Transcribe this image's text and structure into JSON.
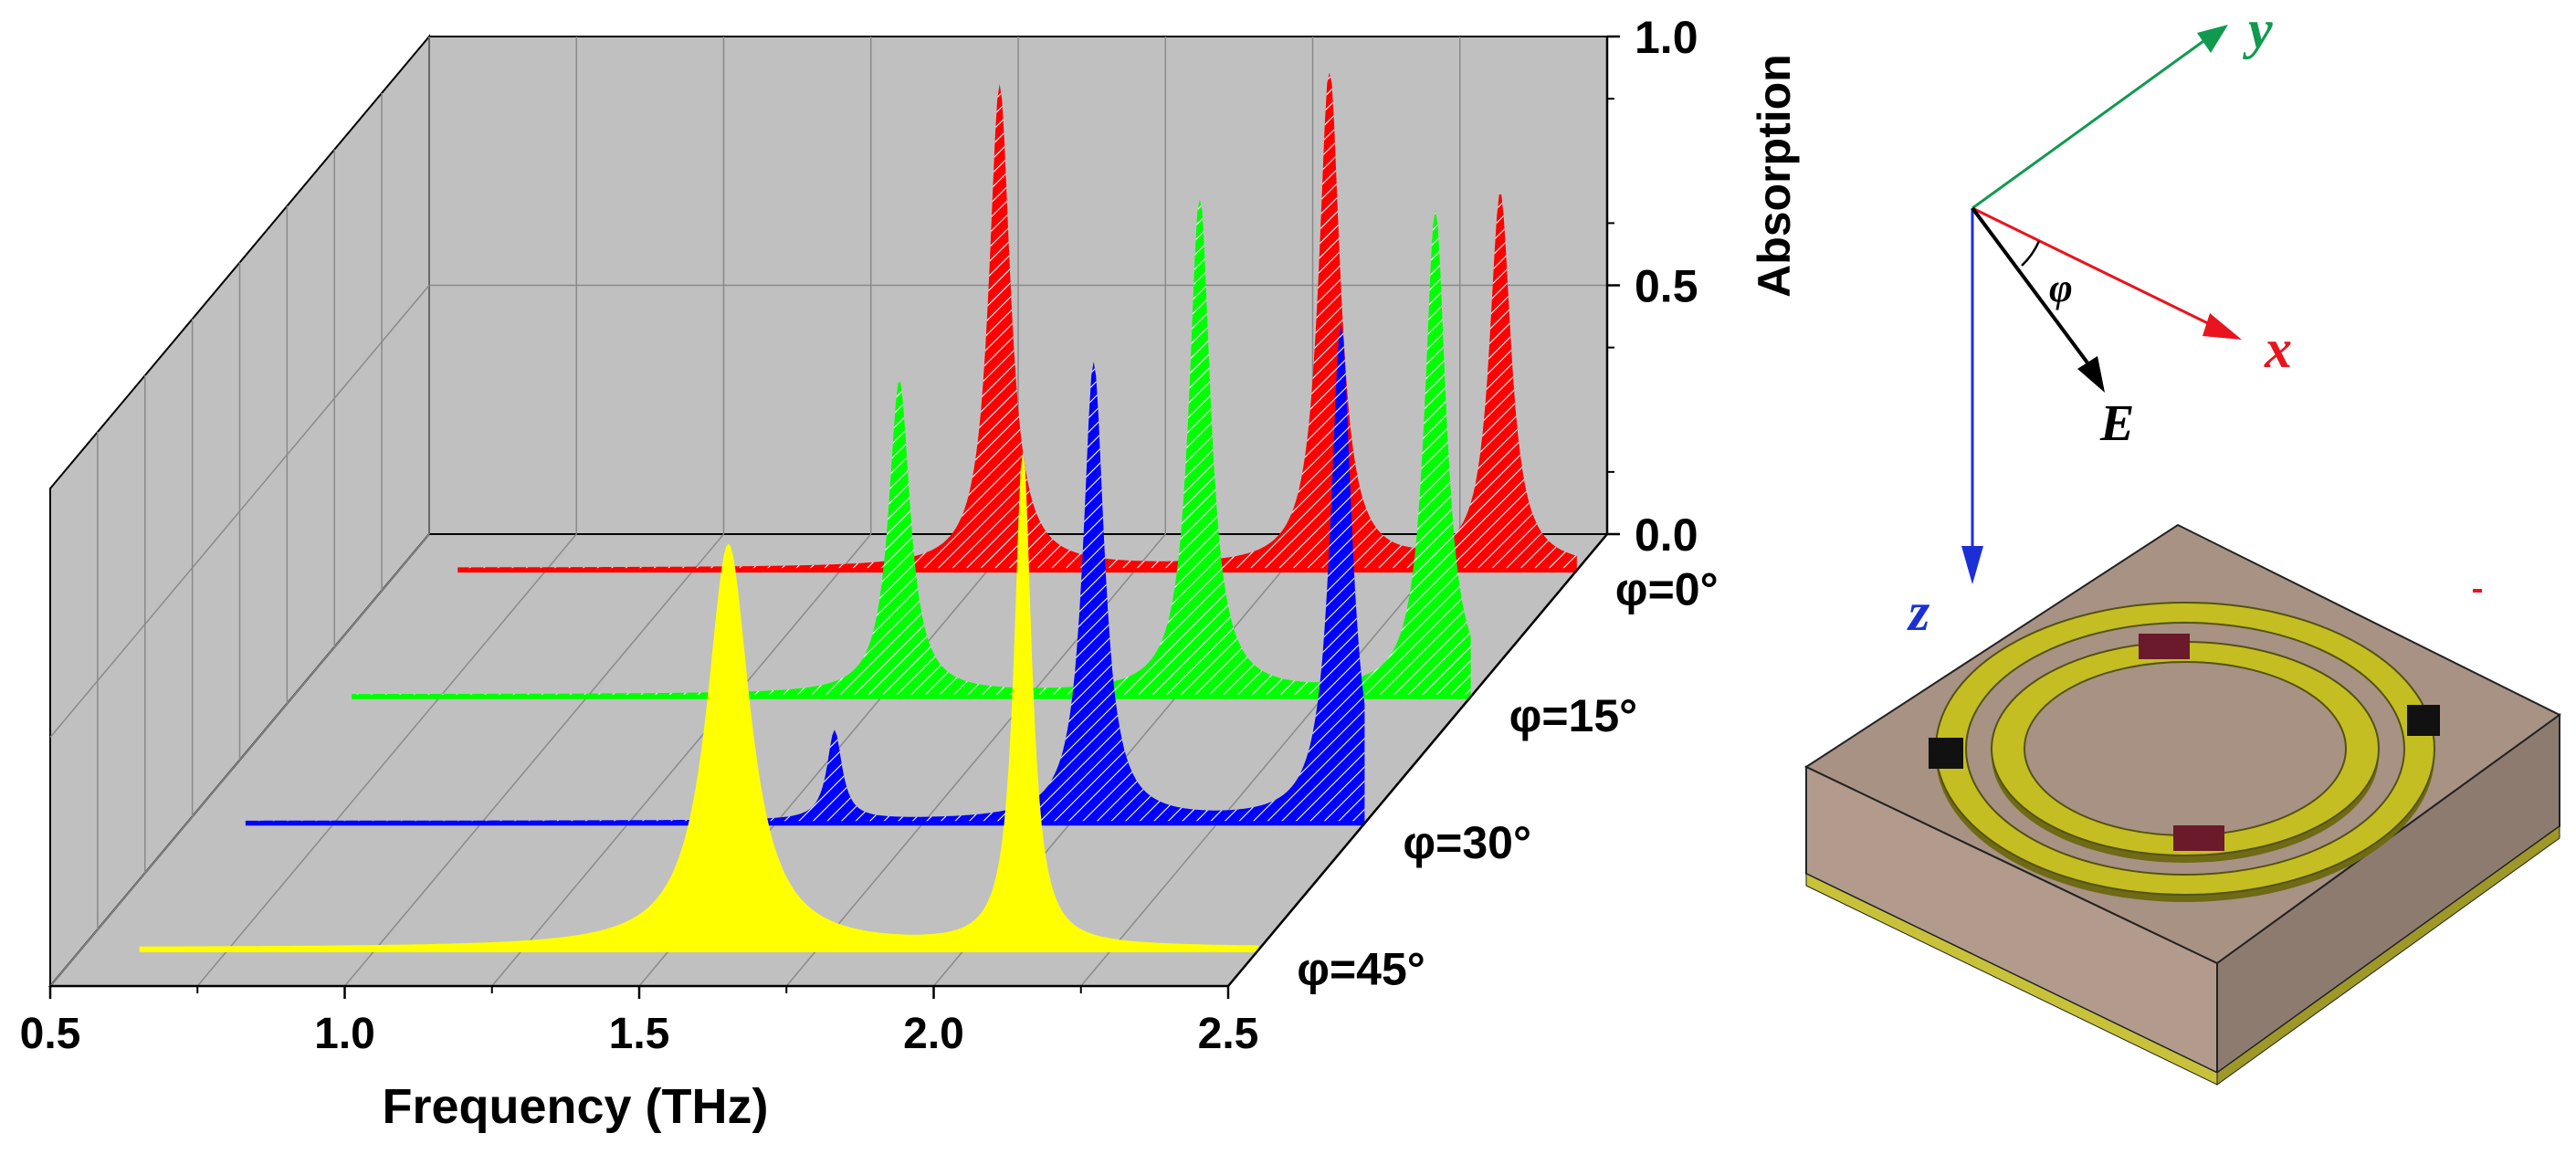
{
  "chart_data": {
    "type": "area",
    "subtype": "3d-waterfall",
    "xlabel": "Frequency (THz)",
    "zlabel": "Absorption",
    "xlim": [
      0.5,
      2.5
    ],
    "zlim": [
      0.0,
      1.0
    ],
    "x_ticks": [
      "0.5",
      "1.0",
      "1.5",
      "2.0",
      "2.5"
    ],
    "z_ticks": [
      "0.0",
      "0.5",
      "1.0"
    ],
    "grid": true,
    "series": [
      {
        "name": "φ=0°",
        "color": "#ff0000",
        "hatched": true,
        "peaks": [
          {
            "f": 1.52,
            "a": 0.97
          },
          {
            "f": 2.08,
            "a": 1.0
          },
          {
            "f": 2.37,
            "a": 0.75
          }
        ]
      },
      {
        "name": "φ=15°",
        "color": "#00ff00",
        "hatched": true,
        "peaks": [
          {
            "f": 1.53,
            "a": 0.63
          },
          {
            "f": 2.04,
            "a": 1.0
          },
          {
            "f": 2.44,
            "a": 0.97
          }
        ]
      },
      {
        "name": "φ=30°",
        "color": "#0000ff",
        "hatched": true,
        "peaks": [
          {
            "f": 1.6,
            "a": 0.18
          },
          {
            "f": 2.04,
            "a": 0.92
          },
          {
            "f": 2.46,
            "a": 1.0
          }
        ]
      },
      {
        "name": "φ=45°",
        "color": "#ffff00",
        "hatched": false,
        "peaks": [
          {
            "f": 1.6,
            "a": 0.81
          },
          {
            "f": 2.1,
            "a": 1.0
          }
        ]
      }
    ]
  },
  "diagram": {
    "axis_y": "y",
    "axis_x": "x",
    "axis_z": "z",
    "angle": "φ",
    "field": "E",
    "colors": {
      "y": "#109a50",
      "x": "#e8141e",
      "z": "#1c2fd6",
      "e": "#000000"
    }
  }
}
